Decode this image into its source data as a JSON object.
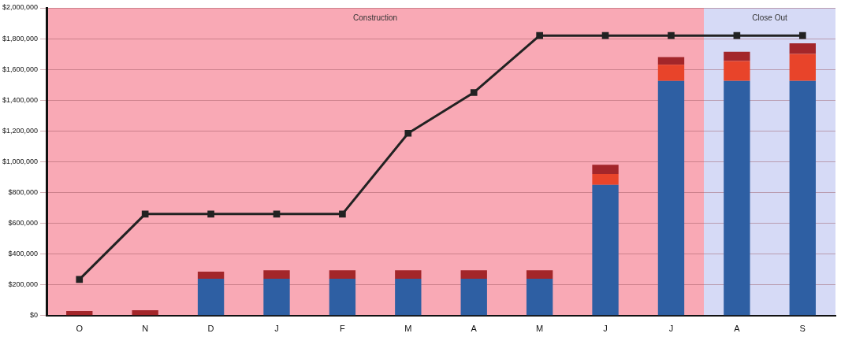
{
  "chart_data": {
    "type": "bar",
    "stacked": true,
    "categories": [
      "O",
      "N",
      "D",
      "J",
      "F",
      "M",
      "A",
      "M",
      "J",
      "J",
      "A",
      "S"
    ],
    "series": [
      {
        "color": "#2e5fa3",
        "values": [
          0,
          0,
          240000,
          240000,
          240000,
          240000,
          240000,
          240000,
          850000,
          1525000,
          1525000,
          1525000
        ]
      },
      {
        "color": "#e8442a",
        "values": [
          0,
          0,
          0,
          0,
          0,
          0,
          0,
          0,
          70000,
          105000,
          130000,
          175000
        ]
      },
      {
        "color": "#a3262a",
        "values": [
          30000,
          35000,
          45000,
          55000,
          55000,
          55000,
          55000,
          55000,
          60000,
          50000,
          60000,
          70000
        ]
      },
      {
        "type": "line",
        "color": "#222222",
        "marker": "square",
        "values": [
          235000,
          660000,
          660000,
          660000,
          660000,
          1185000,
          1450000,
          1820000,
          1820000,
          1820000,
          1820000,
          1820000
        ]
      }
    ],
    "ylim": [
      0,
      2000000
    ],
    "yticks": [
      {
        "value": 0,
        "label": "$0"
      },
      {
        "value": 200000,
        "label": "$200,000"
      },
      {
        "value": 400000,
        "label": "$400,000"
      },
      {
        "value": 600000,
        "label": "$600,000"
      },
      {
        "value": 800000,
        "label": "$800,000"
      },
      {
        "value": 1000000,
        "label": "$1,000,000"
      },
      {
        "value": 1200000,
        "label": "$1,200,000"
      },
      {
        "value": 1400000,
        "label": "$1,400,000"
      },
      {
        "value": 1600000,
        "label": "$1,600,000"
      },
      {
        "value": 1800000,
        "label": "$1,800,000"
      },
      {
        "value": 2000000,
        "label": "$2,000,000"
      }
    ],
    "annotations": [
      "Construction",
      "Close Out"
    ],
    "grid": "y",
    "legend": false
  }
}
